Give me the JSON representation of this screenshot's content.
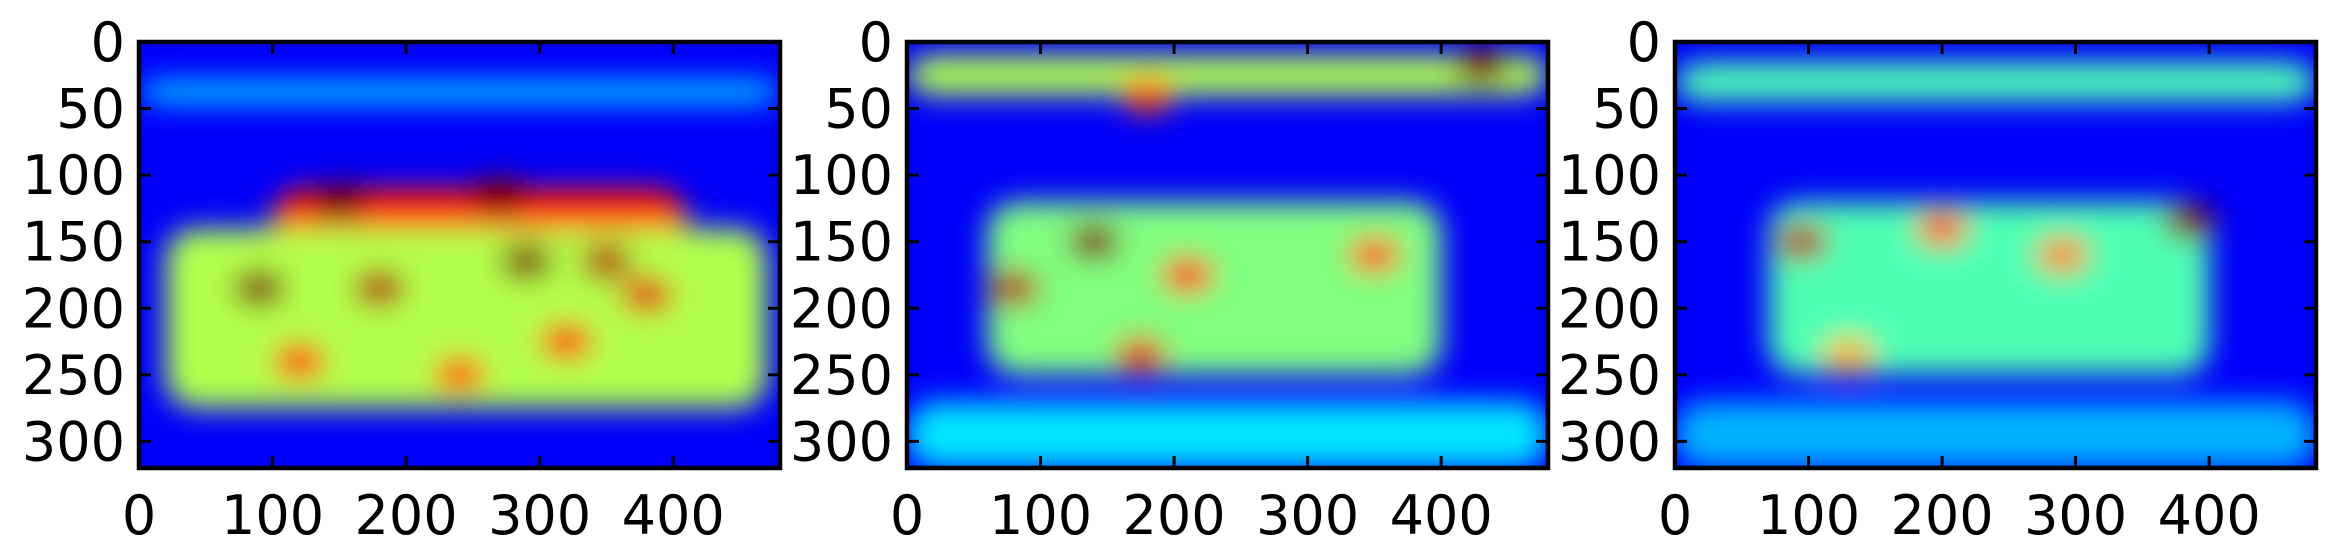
{
  "chart_data": [
    {
      "type": "heatmap",
      "colormap": "jet",
      "x_ticks": [
        0,
        100,
        200,
        300,
        400
      ],
      "y_ticks": [
        0,
        50,
        100,
        150,
        200,
        250,
        300
      ],
      "xlim": [
        0,
        480
      ],
      "ylim": [
        320,
        0
      ],
      "grid": false,
      "description_regions": [
        {
          "x": [
            100,
            410
          ],
          "y": [
            110,
            260
          ],
          "level": 0.85
        },
        {
          "x": [
            20,
            470
          ],
          "y": [
            140,
            275
          ],
          "level": 0.55
        },
        {
          "x": [
            0,
            480
          ],
          "y": [
            30,
            45
          ],
          "level": 0.35
        }
      ],
      "hotspots": [
        {
          "x": 150,
          "y": 120,
          "level": 1.0
        },
        {
          "x": 270,
          "y": 115,
          "level": 1.0
        },
        {
          "x": 90,
          "y": 185,
          "level": 1.0
        },
        {
          "x": 180,
          "y": 185,
          "level": 0.95
        },
        {
          "x": 290,
          "y": 165,
          "level": 1.0
        },
        {
          "x": 350,
          "y": 165,
          "level": 0.95
        },
        {
          "x": 380,
          "y": 190,
          "level": 0.9
        },
        {
          "x": 120,
          "y": 240,
          "level": 0.85
        },
        {
          "x": 240,
          "y": 250,
          "level": 0.8
        },
        {
          "x": 320,
          "y": 225,
          "level": 0.85
        }
      ]
    },
    {
      "type": "heatmap",
      "colormap": "jet",
      "x_ticks": [
        0,
        100,
        200,
        300,
        400
      ],
      "y_ticks": [
        0,
        50,
        100,
        150,
        200,
        250,
        300
      ],
      "xlim": [
        0,
        480
      ],
      "ylim": [
        320,
        0
      ],
      "grid": false,
      "description_regions": [
        {
          "x": [
            0,
            480
          ],
          "y": [
            10,
            40
          ],
          "level": 0.55
        },
        {
          "x": [
            60,
            400
          ],
          "y": [
            120,
            250
          ],
          "level": 0.5
        },
        {
          "x": [
            0,
            480
          ],
          "y": [
            270,
            320
          ],
          "level": 0.35
        }
      ],
      "hotspots": [
        {
          "x": 430,
          "y": 18,
          "level": 1.0
        },
        {
          "x": 180,
          "y": 40,
          "level": 0.8
        },
        {
          "x": 140,
          "y": 150,
          "level": 1.0
        },
        {
          "x": 80,
          "y": 185,
          "level": 0.95
        },
        {
          "x": 175,
          "y": 235,
          "level": 0.9
        },
        {
          "x": 210,
          "y": 175,
          "level": 0.85
        },
        {
          "x": 350,
          "y": 160,
          "level": 0.8
        }
      ]
    },
    {
      "type": "heatmap",
      "colormap": "jet",
      "x_ticks": [
        0,
        100,
        200,
        300,
        400
      ],
      "y_ticks": [
        0,
        50,
        100,
        150,
        200,
        250,
        300
      ],
      "xlim": [
        0,
        480
      ],
      "ylim": [
        320,
        0
      ],
      "grid": false,
      "description_regions": [
        {
          "x": [
            0,
            480
          ],
          "y": [
            15,
            45
          ],
          "level": 0.45
        },
        {
          "x": [
            70,
            400
          ],
          "y": [
            120,
            250
          ],
          "level": 0.45
        },
        {
          "x": [
            0,
            480
          ],
          "y": [
            270,
            320
          ],
          "level": 0.3
        }
      ],
      "hotspots": [
        {
          "x": 385,
          "y": 135,
          "level": 1.0
        },
        {
          "x": 95,
          "y": 150,
          "level": 0.95
        },
        {
          "x": 200,
          "y": 140,
          "level": 0.8
        },
        {
          "x": 290,
          "y": 160,
          "level": 0.75
        },
        {
          "x": 130,
          "y": 235,
          "level": 0.7
        }
      ]
    }
  ]
}
